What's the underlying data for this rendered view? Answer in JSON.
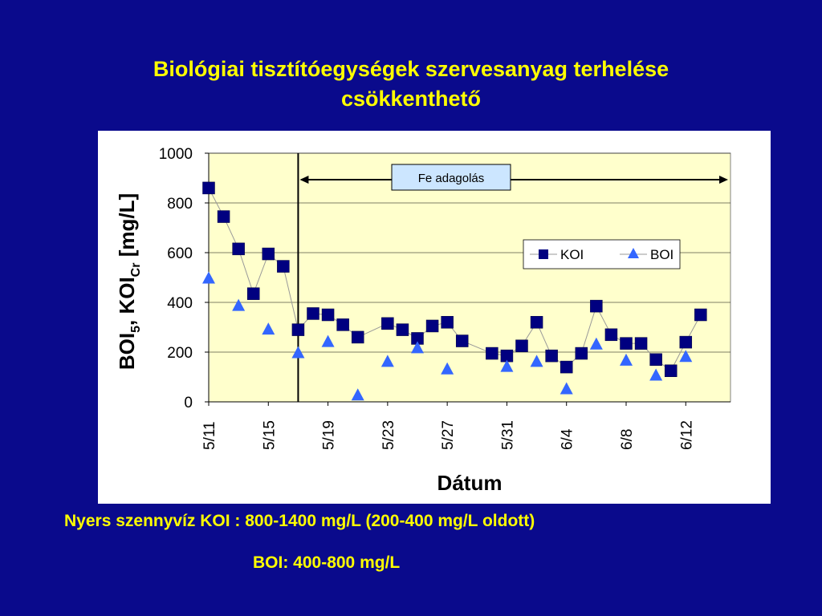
{
  "slide": {
    "title_line1": "Biológiai tisztítóegységek szervesanyag terhelése",
    "title_line2": "csökkenthető",
    "note1": "Nyers szennyvíz KOI : 800-1400 mg/L (200-400 mg/L oldott)",
    "note2": "BOI: 400-800 mg/L"
  },
  "chart_data": {
    "type": "scatter",
    "title": "",
    "xlabel": "Dátum",
    "ylabel": "BOI5, KOICr [mg/L]",
    "ylabel_parts": {
      "p1": "BOI",
      "s1": "5",
      "p2": ", KOI",
      "s2": "Cr",
      "p3": " [mg/L]"
    },
    "ylim": [
      0,
      1000
    ],
    "yticks": [
      "0",
      "200",
      "400",
      "600",
      "800",
      "1000"
    ],
    "x_start": "5/11",
    "x_end": "6/15",
    "xticks": [
      "5/11",
      "5/15",
      "5/19",
      "5/23",
      "5/27",
      "5/31",
      "6/4",
      "6/8",
      "6/12"
    ],
    "grid": true,
    "legend_placement": "right",
    "annotation": {
      "label": "Fe adagolás",
      "start": "5/17",
      "end": "6/15"
    },
    "colors": {
      "plot_bg": "#ffffcc",
      "koi": "#000080",
      "boi": "#3366ff",
      "line": "#999999"
    },
    "series": [
      {
        "name": "KOI",
        "marker": "square",
        "points": [
          [
            "5/11",
            860
          ],
          [
            "5/12",
            745
          ],
          [
            "5/13",
            615
          ],
          [
            "5/14",
            435
          ],
          [
            "5/15",
            595
          ],
          [
            "5/16",
            545
          ],
          [
            "5/17",
            290
          ],
          [
            "5/18",
            355
          ],
          [
            "5/19",
            350
          ],
          [
            "5/20",
            310
          ],
          [
            "5/21",
            260
          ],
          [
            "5/23",
            315
          ],
          [
            "5/24",
            290
          ],
          [
            "5/25",
            255
          ],
          [
            "5/26",
            305
          ],
          [
            "5/27",
            320
          ],
          [
            "5/28",
            245
          ],
          [
            "5/30",
            195
          ],
          [
            "5/31",
            185
          ],
          [
            "6/1",
            225
          ],
          [
            "6/2",
            320
          ],
          [
            "6/3",
            185
          ],
          [
            "6/4",
            140
          ],
          [
            "6/5",
            195
          ],
          [
            "6/6",
            385
          ],
          [
            "6/7",
            270
          ],
          [
            "6/8",
            235
          ],
          [
            "6/9",
            235
          ],
          [
            "6/10",
            170
          ],
          [
            "6/11",
            125
          ],
          [
            "6/12",
            240
          ],
          [
            "6/13",
            350
          ]
        ]
      },
      {
        "name": "BOI",
        "marker": "triangle",
        "points": [
          [
            "5/11",
            495
          ],
          [
            "5/13",
            385
          ],
          [
            "5/15",
            290
          ],
          [
            "5/17",
            195
          ],
          [
            "5/19",
            240
          ],
          [
            "5/21",
            25
          ],
          [
            "5/23",
            160
          ],
          [
            "5/25",
            215
          ],
          [
            "5/27",
            130
          ],
          [
            "5/31",
            140
          ],
          [
            "6/2",
            160
          ],
          [
            "6/4",
            50
          ],
          [
            "6/6",
            230
          ],
          [
            "6/8",
            165
          ],
          [
            "6/10",
            105
          ],
          [
            "6/12",
            180
          ]
        ]
      }
    ]
  }
}
